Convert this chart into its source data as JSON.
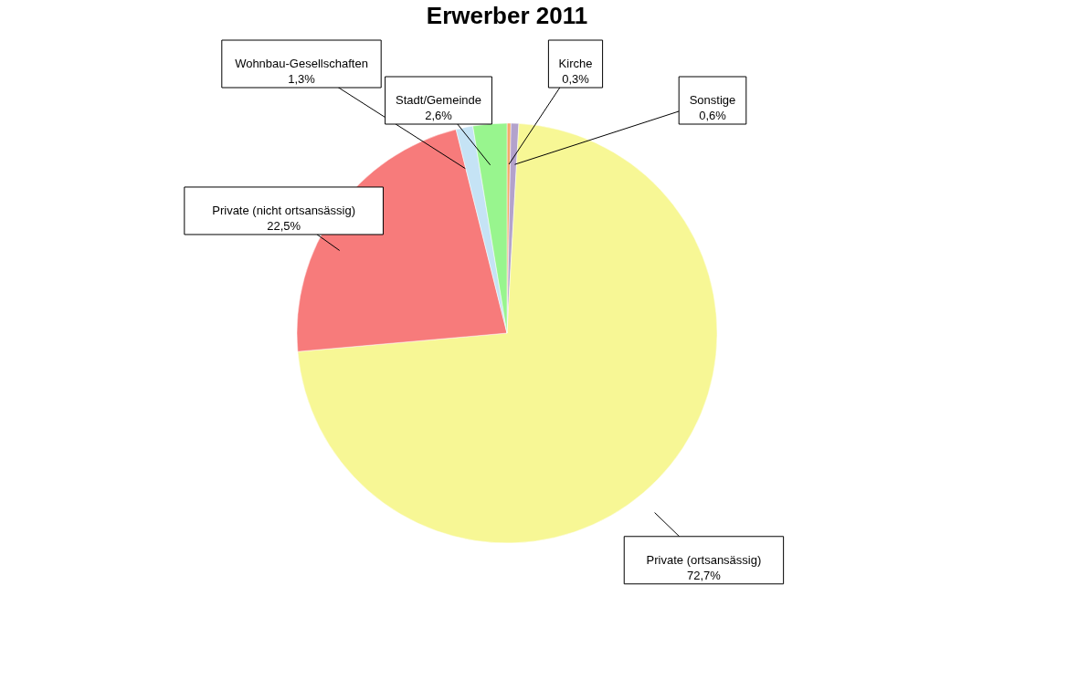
{
  "chart_data": {
    "type": "pie",
    "title": "Erwerber 2011",
    "categories": [
      "Kirche",
      "Sonstige",
      "Private (ortsansässig)",
      "Private (nicht ortsansässig)",
      "Wohnbau-Gesellschaften",
      "Stadt/Gemeinde"
    ],
    "values": [
      0.3,
      0.6,
      72.7,
      22.5,
      1.3,
      2.6
    ],
    "value_labels": [
      "0,3%",
      "0,6%",
      "72,7%",
      "22,5%",
      "1,3%",
      "2,6%"
    ],
    "colors": [
      "#f5a96a",
      "#b3a2cc",
      "#f7f795",
      "#f77b7b",
      "#c5e3f5",
      "#98f58e"
    ],
    "legend": false
  }
}
